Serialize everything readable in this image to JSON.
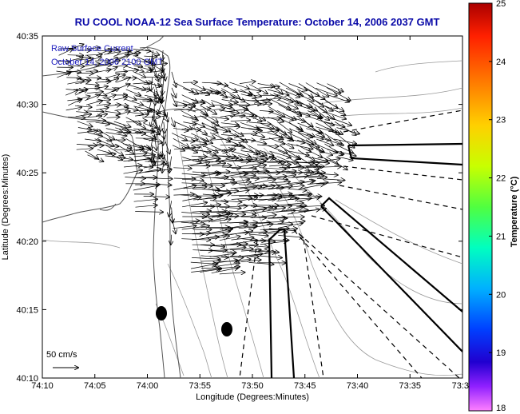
{
  "title": "RU COOL  NOAA-12  Sea Surface Temperature:  October 14, 2006 2037 GMT",
  "overlay": {
    "line1": "Raw Surface Current",
    "line2": "October 14, 2006 2100 GMT"
  },
  "scale_label": "50 cm/s",
  "x_axis": {
    "label": "Longitude (Degrees:Minutes)",
    "ticks": [
      "74:10",
      "74:05",
      "74:00",
      "73:55",
      "73:50",
      "73:45",
      "73:40",
      "73:35",
      "73:3"
    ]
  },
  "y_axis": {
    "label": "Latitude (Degrees:Minutes)",
    "ticks": [
      "40:35",
      "40:30",
      "40:25",
      "40:20",
      "40:15",
      "40:10"
    ]
  },
  "colorbar": {
    "label": "Temperature (°C)",
    "ticks": [
      "25",
      "24",
      "23",
      "22",
      "21",
      "20",
      "19",
      "18"
    ],
    "colors": [
      "#aa0000",
      "#ff2000",
      "#ff8000",
      "#ffd000",
      "#c8ff00",
      "#50ff40",
      "#00ffc0",
      "#00b0ff",
      "#0040ff",
      "#2000d0",
      "#9020ff",
      "#ff40ff",
      "#ff80ff"
    ]
  },
  "colors": {
    "title": "#0a0aa8",
    "overlay_text": "#2020c0",
    "coast": "#555555",
    "contour": "#999999",
    "marks": "#000000"
  }
}
